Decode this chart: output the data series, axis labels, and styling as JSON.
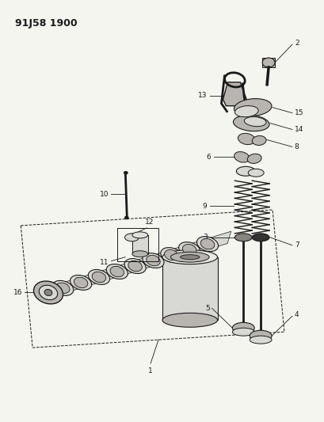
{
  "title": "91J58 1900",
  "bg_color": "#f5f5f0",
  "line_color": "#1a1a1a",
  "text_color": "#1a1a1a",
  "figsize": [
    4.1,
    5.33
  ],
  "dpi": 100,
  "gray_light": "#d8d8d4",
  "gray_mid": "#b8b4b0",
  "gray_dark": "#888480",
  "label_fontsize": 6.5,
  "title_fontsize": 9
}
